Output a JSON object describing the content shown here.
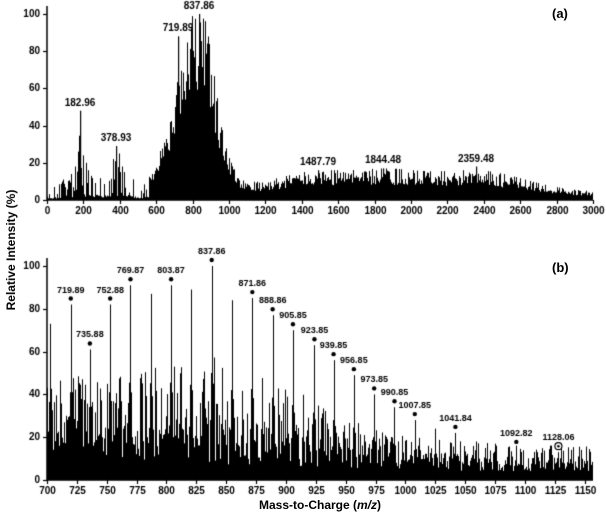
{
  "figure": {
    "background": "#ffffff",
    "ink_color": "#000000",
    "y_axis_title": "Relative Intensity (%)",
    "x_axis_title": {
      "prefix": "Mass-to-Charge (",
      "italic": "m/z",
      "suffix": ")"
    }
  },
  "chart_data": [
    {
      "panel_label": "(a)",
      "type": "line",
      "subtype": "mass-spectrum",
      "title": "",
      "xlabel": "Mass-to-Charge (m/z)",
      "ylabel": "Relative Intensity (%)",
      "xlim": [
        0,
        3000
      ],
      "ylim": [
        0,
        100
      ],
      "x_ticks": [
        0,
        200,
        400,
        600,
        800,
        1000,
        1200,
        1400,
        1600,
        1800,
        2000,
        2200,
        2400,
        2600,
        2800,
        3000
      ],
      "y_ticks": [
        0,
        20,
        40,
        60,
        80,
        100
      ],
      "labeled_peaks": [
        {
          "mz": 182.96,
          "intensity": 48,
          "label": "182.96"
        },
        {
          "mz": 378.93,
          "intensity": 29,
          "label": "378.93"
        },
        {
          "mz": 719.89,
          "intensity": 88,
          "label": "719.89"
        },
        {
          "mz": 837.86,
          "intensity": 100,
          "label": "837.86"
        },
        {
          "mz": 1487.79,
          "intensity": 16,
          "label": "1487.79"
        },
        {
          "mz": 1844.48,
          "intensity": 17,
          "label": "1844.48"
        },
        {
          "mz": 2359.48,
          "intensity": 18,
          "label": "2359.48"
        }
      ],
      "render": {
        "seed": 1337,
        "base_noise": 4,
        "cap": 97,
        "sparse_below": 560,
        "dense_range": [
          600,
          1060
        ],
        "bumps": [
          {
            "c": 185,
            "s": 90,
            "a": 16
          },
          {
            "c": 390,
            "s": 55,
            "a": 18
          },
          {
            "c": 845,
            "sL": 150,
            "sR": 95,
            "a": 58
          },
          {
            "c": 835,
            "sL": 80,
            "sR": 60,
            "a": 40
          },
          {
            "c": 1200,
            "s": 300,
            "a": 4
          },
          {
            "c": 1480,
            "s": 170,
            "a": 7
          },
          {
            "c": 1850,
            "s": 190,
            "a": 9.5
          },
          {
            "c": 2360,
            "s": 260,
            "a": 11
          }
        ],
        "extra_peaks": [
          [
            130,
            14
          ],
          [
            155,
            18
          ],
          [
            168,
            26
          ],
          [
            197,
            24
          ],
          [
            213,
            20
          ],
          [
            228,
            16
          ],
          [
            242,
            13
          ],
          [
            362,
            22
          ],
          [
            395,
            25
          ],
          [
            410,
            18
          ],
          [
            425,
            15
          ]
        ]
      }
    },
    {
      "panel_label": "(b)",
      "type": "line",
      "subtype": "mass-spectrum",
      "title": "",
      "xlabel": "Mass-to-Charge (m/z)",
      "ylabel": "Relative Intensity (%)",
      "xlim": [
        700,
        1157
      ],
      "ylim": [
        0,
        100
      ],
      "x_ticks": [
        700,
        725,
        750,
        775,
        800,
        825,
        850,
        875,
        900,
        925,
        950,
        975,
        1000,
        1025,
        1050,
        1075,
        1100,
        1125,
        1150
      ],
      "y_ticks": [
        0,
        20,
        40,
        60,
        80,
        100
      ],
      "labeled_peaks": [
        {
          "mz": 719.89,
          "intensity": 82,
          "label": "719.89",
          "marker": "dot"
        },
        {
          "mz": 735.88,
          "intensity": 61,
          "label": "735.88",
          "marker": "dot"
        },
        {
          "mz": 752.88,
          "intensity": 82,
          "label": "752.88",
          "marker": "dot"
        },
        {
          "mz": 769.87,
          "intensity": 91,
          "label": "769.87",
          "marker": "dot"
        },
        {
          "mz": 803.87,
          "intensity": 91,
          "label": "803.87",
          "marker": "dot"
        },
        {
          "mz": 837.86,
          "intensity": 100,
          "label": "837.86",
          "marker": "dot"
        },
        {
          "mz": 871.86,
          "intensity": 85,
          "label": "871.86",
          "marker": "dot"
        },
        {
          "mz": 888.86,
          "intensity": 77,
          "label": "888.86",
          "marker": "dot"
        },
        {
          "mz": 905.85,
          "intensity": 70,
          "label": "905.85",
          "marker": "dot"
        },
        {
          "mz": 923.85,
          "intensity": 63,
          "label": "923.85",
          "marker": "dot"
        },
        {
          "mz": 939.85,
          "intensity": 56,
          "label": "939.85",
          "marker": "dot"
        },
        {
          "mz": 956.85,
          "intensity": 49,
          "label": "956.85",
          "marker": "dot"
        },
        {
          "mz": 973.85,
          "intensity": 40,
          "label": "973.85",
          "marker": "dot"
        },
        {
          "mz": 990.85,
          "intensity": 34,
          "label": "990.85",
          "marker": "dot"
        },
        {
          "mz": 1007.85,
          "intensity": 28,
          "label": "1007.85",
          "marker": "dot"
        },
        {
          "mz": 1041.84,
          "intensity": 22,
          "label": "1041.84",
          "marker": "dot"
        },
        {
          "mz": 1092.82,
          "intensity": 15,
          "label": "1092.82",
          "marker": "dot"
        },
        {
          "mz": 1128.06,
          "intensity": 13,
          "label": "1128.06",
          "marker": "circle-dot"
        }
      ],
      "unlabeled_main_peaks": [
        {
          "mz": 702.9,
          "intensity": 73
        },
        {
          "mz": 786.87,
          "intensity": 87
        },
        {
          "mz": 820.86,
          "intensity": 89
        },
        {
          "mz": 854.86,
          "intensity": 84
        },
        {
          "mz": 1024.84,
          "intensity": 24
        },
        {
          "mz": 1058.84,
          "intensity": 18
        },
        {
          "mz": 1075.83,
          "intensity": 16
        },
        {
          "mz": 1109.83,
          "intensity": 13
        },
        {
          "mz": 1144.8,
          "intensity": 11
        }
      ],
      "render": {
        "seed": 777,
        "noise_floor": {
          "base": 8,
          "amp": 30,
          "decay": 180
        },
        "forest_prob": 0.17,
        "spike_prob": 0.22,
        "secondary_offset": 8.5,
        "secondary_scale": 0.5,
        "tertiary_offsets": [
          4.2,
          12.8
        ],
        "tertiary_scale": 0.3
      }
    }
  ]
}
